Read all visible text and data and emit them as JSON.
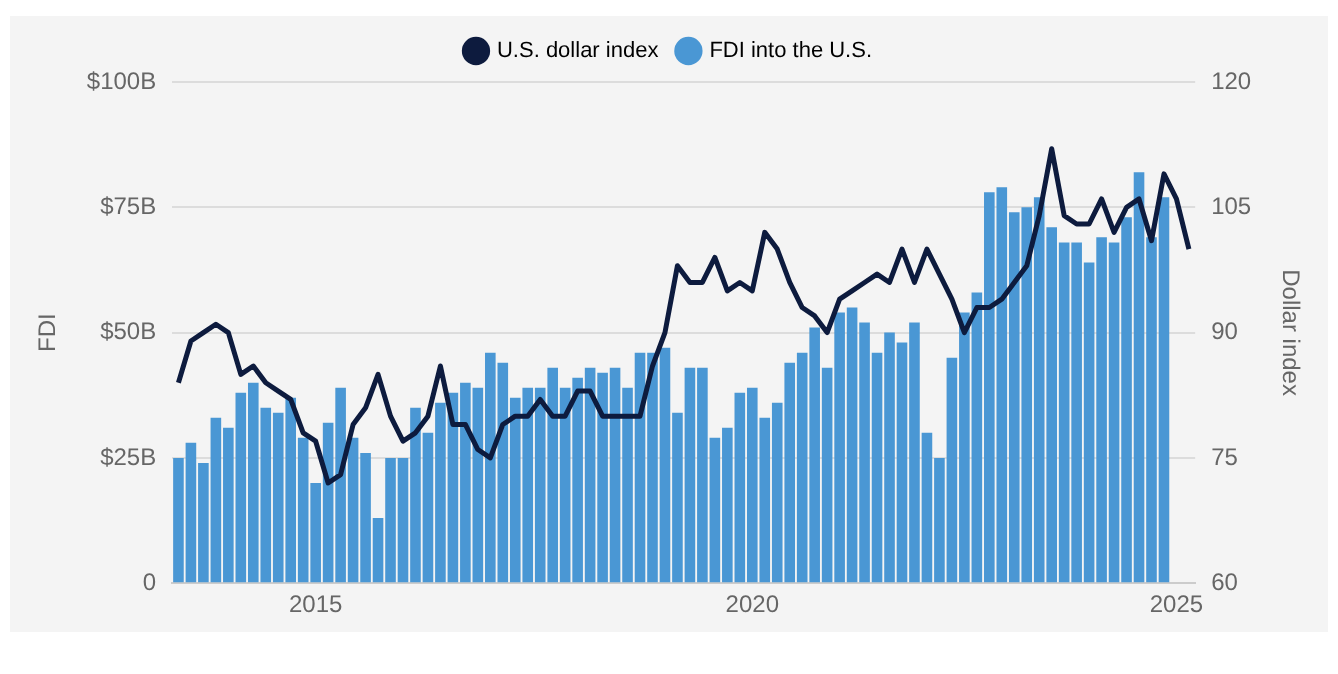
{
  "chart_data": {
    "type": "bar",
    "ylabel": "FDI",
    "y2label": "Dollar index",
    "categories": [
      null,
      null,
      null,
      null,
      null,
      null,
      null,
      null,
      null,
      null,
      null,
      "2015",
      null,
      null,
      null,
      null,
      null,
      null,
      null,
      null,
      null,
      null,
      null,
      null,
      null,
      null,
      null,
      null,
      null,
      null,
      null,
      null,
      null,
      null,
      null,
      null,
      null,
      null,
      null,
      null,
      null,
      null,
      null,
      null,
      null,
      null,
      "2020",
      null,
      null,
      null,
      null,
      null,
      null,
      null,
      null,
      null,
      null,
      null,
      null,
      null,
      null,
      null,
      null,
      null,
      null,
      null,
      null,
      null,
      null,
      null,
      null,
      null,
      null,
      null,
      null,
      null,
      null,
      null,
      null,
      null,
      "2025",
      null
    ],
    "series": [
      {
        "name": "U.S. dollar index",
        "type": "line",
        "axis": "y2",
        "color": "#0d1b3e",
        "values": [
          84,
          89,
          90,
          91,
          90,
          85,
          86,
          84,
          83,
          82,
          78,
          77,
          72,
          73,
          79,
          81,
          85,
          80,
          77,
          78,
          80,
          86,
          79,
          79,
          76,
          75,
          79,
          80,
          80,
          82,
          80,
          80,
          83,
          83,
          80,
          80,
          80,
          80,
          86,
          90,
          98,
          96,
          96,
          99,
          95,
          96,
          95,
          102,
          100,
          96,
          93,
          92,
          90,
          94,
          95,
          96,
          97,
          96,
          100,
          96,
          100,
          97,
          94,
          90,
          93,
          93,
          94,
          96,
          98,
          104,
          112,
          104,
          103,
          103,
          106,
          102,
          105,
          106,
          101,
          109,
          106,
          100
        ]
      },
      {
        "name": "FDI into the U.S.",
        "color": "#4a97d4",
        "values": [
          25,
          28,
          24,
          33,
          31,
          38,
          40,
          35,
          34,
          37,
          29,
          20,
          32,
          39,
          29,
          26,
          13,
          25,
          25,
          35,
          30,
          36,
          38,
          40,
          39,
          46,
          44,
          37,
          39,
          39,
          43,
          39,
          41,
          43,
          42,
          43,
          39,
          46,
          46,
          47,
          34,
          43,
          43,
          29,
          31,
          38,
          39,
          33,
          36,
          44,
          46,
          51,
          43,
          54,
          55,
          52,
          46,
          50,
          48,
          52,
          30,
          25,
          45,
          54,
          58,
          78,
          79,
          74,
          75,
          77,
          71,
          68,
          68,
          64,
          69,
          68,
          73,
          82,
          69,
          77,
          null,
          null
        ]
      }
    ],
    "ylim": [
      0,
      100
    ],
    "yticks": [
      {
        "value": 0,
        "label": "0"
      },
      {
        "value": 25,
        "label": "$25B"
      },
      {
        "value": 50,
        "label": "$50B"
      },
      {
        "value": 75,
        "label": "$75B"
      },
      {
        "value": 100,
        "label": "$100B"
      }
    ],
    "y2lim": [
      60,
      120
    ],
    "y2ticks": [
      60,
      75,
      90,
      105,
      120
    ],
    "grid": "y",
    "legend": "top",
    "marker": "none",
    "line_style": "solid"
  }
}
